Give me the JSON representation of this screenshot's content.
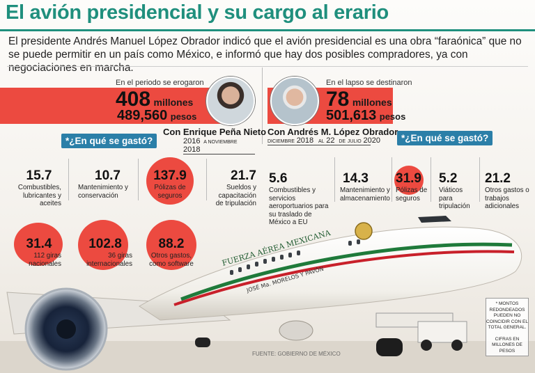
{
  "title": "El avión presidencial y su cargo al erario",
  "intro": "El presidente Andrés Manuel López Obrador indicó que el avión presidencial es una obra “faraónica” que no se puede permitir en un país como México, e informó que hay dos posibles compradores, ya con negociaciones en marcha.",
  "left": {
    "period_label": "En el periodo se erogaron",
    "amount_millions": "408",
    "millions_unit": "millones",
    "amount_pesos": "489,560",
    "pesos_unit": "pesos",
    "who": "Con Enrique Peña Nieto",
    "date_start_year": "2016",
    "date_mid": "A NOVIEMBRE",
    "date_end_year": "2018",
    "question": "*¿En qué se gastó?",
    "stats": [
      {
        "value": "15.7",
        "label": "Combustibles, lubricantes y aceites"
      },
      {
        "value": "10.7",
        "label": "Mantenimiento y conservación"
      },
      {
        "value": "137.9",
        "label": "Pólizas de seguros"
      },
      {
        "value": "21.7",
        "label": "Sueldos y capacitación de tripulación"
      },
      {
        "value": "31.4",
        "label": "112 giras nacionales"
      },
      {
        "value": "102.8",
        "label": "36 giras internacionales"
      },
      {
        "value": "88.2",
        "label": "Otros gastos, como software"
      }
    ]
  },
  "right": {
    "period_label": "En el lapso se destinaron",
    "amount_millions": "78",
    "millions_unit": "millones",
    "amount_pesos": "501,613",
    "pesos_unit": "pesos",
    "who": "Con Andrés M. López Obrador",
    "date_month1": "DICIEMBRE",
    "date_year1": "2018",
    "date_al": "AL",
    "date_day": "22",
    "date_de": "DE",
    "date_month2": "JULIO",
    "date_year2": "2020",
    "question": "*¿En qué se gastó?",
    "stats": [
      {
        "value": "5.6",
        "label": "Combustibles y servicios aeroportuarios para su traslado de México a EU"
      },
      {
        "value": "14.3",
        "label": "Mantenimiento y almacenamiento"
      },
      {
        "value": "31.9",
        "label": "Pólizas de seguros"
      },
      {
        "value": "5.2",
        "label": "Viáticos para tripulación"
      },
      {
        "value": "21.2",
        "label": "Otros gastos o trabajos adicionales"
      }
    ]
  },
  "plane": {
    "airline_text": "FUERZA AÉREA MEXICANA",
    "name_text": "JOSÉ Ma. MORELOS Y PAVÓN"
  },
  "footnote": {
    "line1": "* MONTOS REDONDEADOS PUEDEN NO COINCIDIR CON EL TOTAL GENERAL.",
    "line2": "CIFRAS EN MILLONES DE PESOS"
  },
  "source": "FUENTE: GOBIERNO DE MÉXICO",
  "colors": {
    "accent_teal": "#1f8f7d",
    "accent_red": "#ec4a40",
    "question_blue": "#2b7fa8"
  }
}
